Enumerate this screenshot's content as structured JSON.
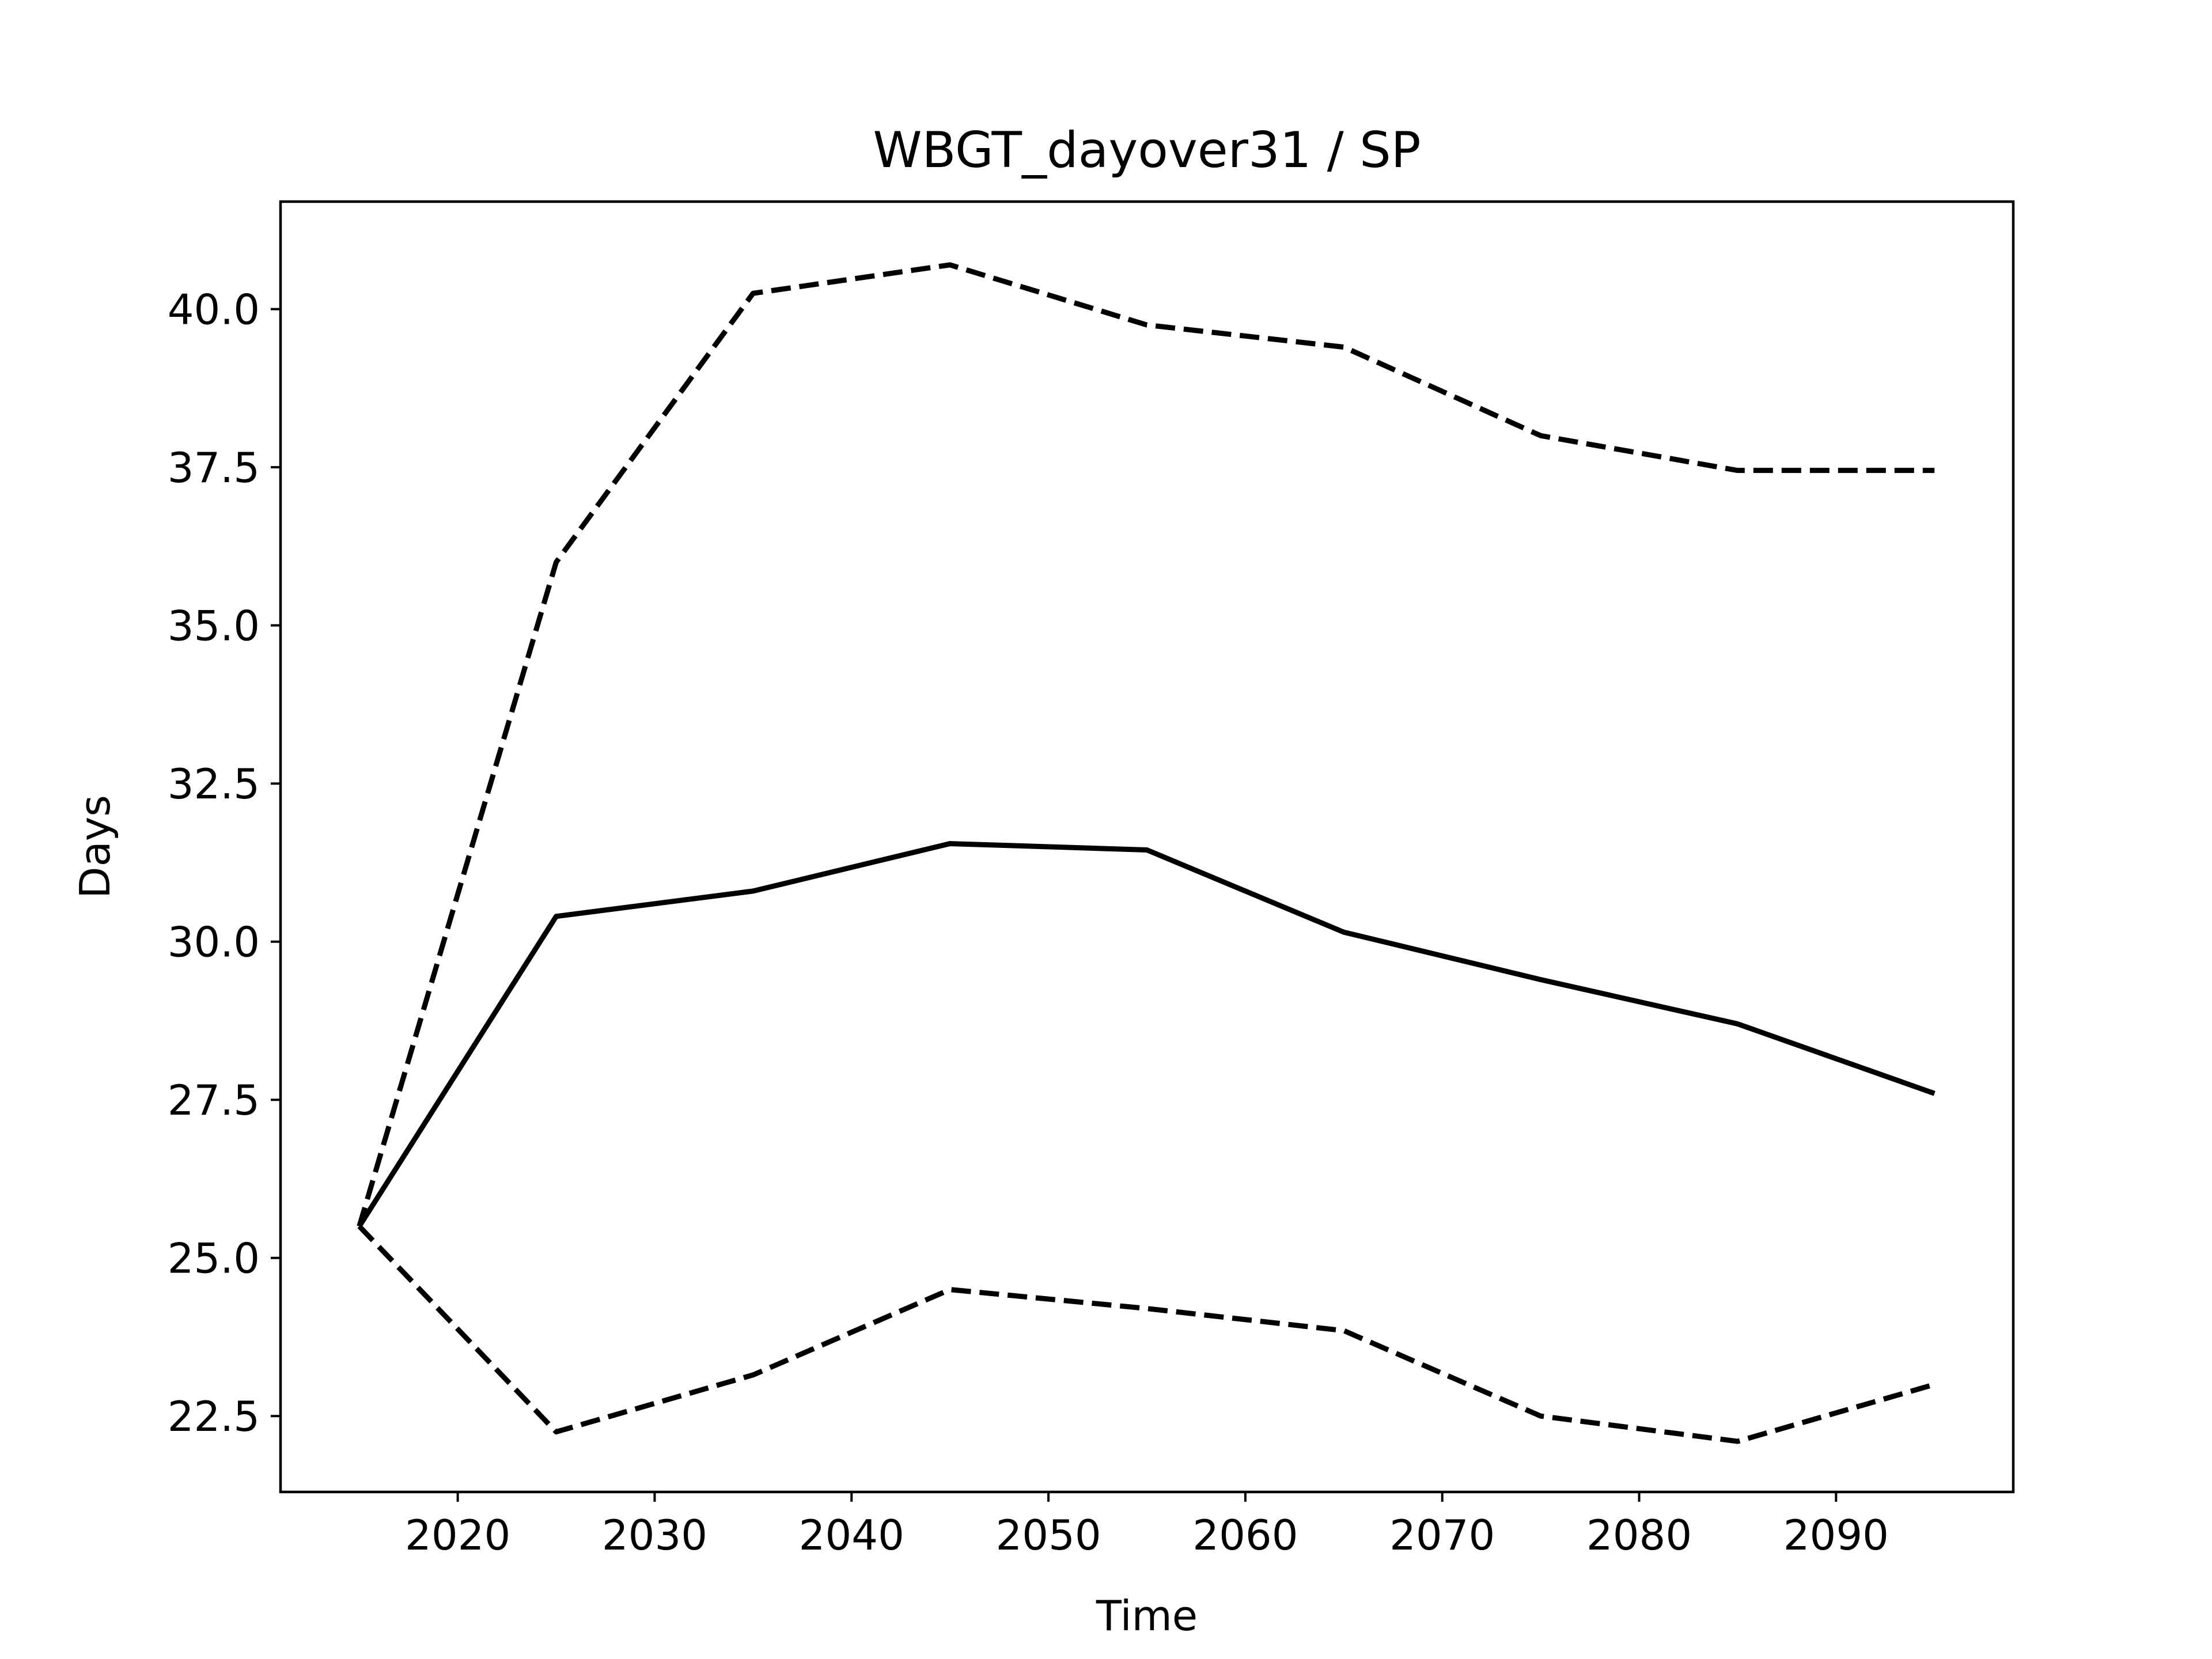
{
  "chart_data": {
    "type": "line",
    "title": "WBGT_dayover31 / SP",
    "xlabel": "Time",
    "ylabel": "Days",
    "x": [
      2015,
      2025,
      2035,
      2045,
      2055,
      2065,
      2075,
      2085,
      2095
    ],
    "xlim": [
      2011,
      2099
    ],
    "ylim": [
      21.3,
      41.7
    ],
    "xticks": [
      2020,
      2030,
      2040,
      2050,
      2060,
      2070,
      2080,
      2090
    ],
    "yticks": [
      22.5,
      25.0,
      27.5,
      30.0,
      32.5,
      35.0,
      37.5,
      40.0
    ],
    "xtick_labels": [
      "2020",
      "2030",
      "2040",
      "2050",
      "2060",
      "2070",
      "2080",
      "2090"
    ],
    "ytick_labels": [
      "22.5",
      "25.0",
      "27.5",
      "30.0",
      "32.5",
      "35.0",
      "37.5",
      "40.0"
    ],
    "grid": false,
    "series": [
      {
        "style": "solid",
        "color": "#000000",
        "values": [
          25.5,
          30.4,
          30.8,
          31.55,
          31.45,
          30.15,
          29.4,
          28.7,
          27.6
        ]
      },
      {
        "style": "dashed",
        "color": "#000000",
        "values": [
          25.5,
          36.0,
          40.25,
          40.7,
          39.75,
          39.4,
          38.0,
          37.45,
          37.45
        ]
      },
      {
        "style": "dashed",
        "color": "#000000",
        "values": [
          25.5,
          22.25,
          23.15,
          24.5,
          24.2,
          23.85,
          22.5,
          22.1,
          23.0
        ]
      }
    ]
  }
}
